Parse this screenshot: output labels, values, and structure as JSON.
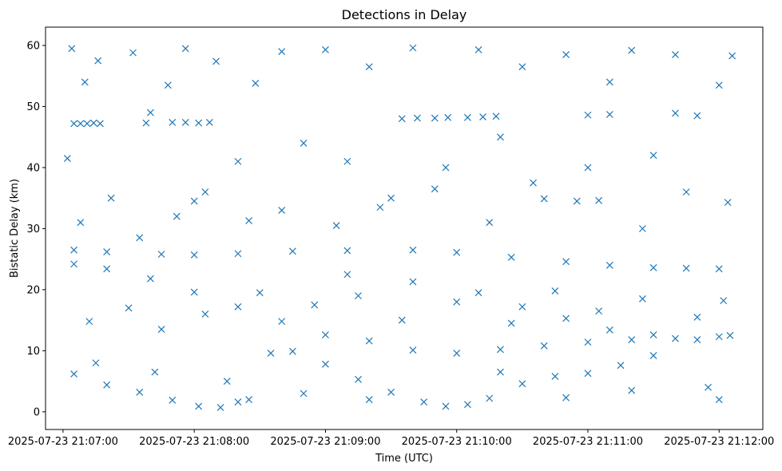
{
  "chart_data": {
    "type": "scatter",
    "title": "Detections in Delay",
    "xlabel": "Time (UTC)",
    "ylabel": "Bistatic Delay (km)",
    "marker": "x",
    "color": "#1f77b4",
    "xlim": [
      "2025-07-23 21:06:52",
      "2025-07-23 21:12:20"
    ],
    "ylim": [
      -2.9,
      63
    ],
    "x_ticks": [
      "2025-07-23 21:07:00",
      "2025-07-23 21:08:00",
      "2025-07-23 21:09:00",
      "2025-07-23 21:10:00",
      "2025-07-23 21:11:00",
      "2025-07-23 21:12:00"
    ],
    "y_ticks": [
      0,
      10,
      20,
      30,
      40,
      50,
      60
    ],
    "grid": false,
    "legend": "none",
    "series": [
      {
        "points": [
          [
            "2025-07-23 21:07:05",
            47.2
          ],
          [
            "2025-07-23 21:07:08",
            47.2
          ],
          [
            "2025-07-23 21:07:11",
            47.2
          ],
          [
            "2025-07-23 21:07:14",
            47.3
          ],
          [
            "2025-07-23 21:07:17",
            47.2
          ],
          [
            "2025-07-23 21:07:38",
            47.3
          ],
          [
            "2025-07-23 21:07:50",
            47.4
          ],
          [
            "2025-07-23 21:07:56",
            47.4
          ],
          [
            "2025-07-23 21:08:02",
            47.3
          ],
          [
            "2025-07-23 21:08:07",
            47.4
          ],
          [
            "2025-07-23 21:09:35",
            48.0
          ],
          [
            "2025-07-23 21:09:42",
            48.1
          ],
          [
            "2025-07-23 21:09:50",
            48.1
          ],
          [
            "2025-07-23 21:09:56",
            48.2
          ],
          [
            "2025-07-23 21:10:05",
            48.2
          ],
          [
            "2025-07-23 21:10:12",
            48.3
          ],
          [
            "2025-07-23 21:10:18",
            48.4
          ],
          [
            "2025-07-23 21:11:00",
            48.6
          ],
          [
            "2025-07-23 21:11:10",
            48.7
          ],
          [
            "2025-07-23 21:11:40",
            48.9
          ],
          [
            "2025-07-23 21:07:05",
            26.5
          ],
          [
            "2025-07-23 21:07:20",
            26.2
          ],
          [
            "2025-07-23 21:07:45",
            25.8
          ],
          [
            "2025-07-23 21:08:00",
            25.7
          ],
          [
            "2025-07-23 21:08:20",
            25.9
          ],
          [
            "2025-07-23 21:08:45",
            26.3
          ],
          [
            "2025-07-23 21:09:10",
            26.4
          ],
          [
            "2025-07-23 21:09:40",
            26.5
          ],
          [
            "2025-07-23 21:10:00",
            26.1
          ],
          [
            "2025-07-23 21:10:25",
            25.3
          ],
          [
            "2025-07-23 21:10:50",
            24.6
          ],
          [
            "2025-07-23 21:11:10",
            24.0
          ],
          [
            "2025-07-23 21:11:30",
            23.6
          ],
          [
            "2025-07-23 21:11:45",
            23.5
          ],
          [
            "2025-07-23 21:12:00",
            23.4
          ],
          [
            "2025-07-23 21:07:05",
            24.2
          ],
          [
            "2025-07-23 21:07:20",
            23.4
          ],
          [
            "2025-07-23 21:07:40",
            21.8
          ],
          [
            "2025-07-23 21:08:00",
            19.6
          ],
          [
            "2025-07-23 21:08:20",
            17.2
          ],
          [
            "2025-07-23 21:08:40",
            14.8
          ],
          [
            "2025-07-23 21:09:00",
            12.6
          ],
          [
            "2025-07-23 21:09:20",
            11.6
          ],
          [
            "2025-07-23 21:09:40",
            10.1
          ],
          [
            "2025-07-23 21:10:00",
            9.6
          ],
          [
            "2025-07-23 21:10:20",
            10.2
          ],
          [
            "2025-07-23 21:10:40",
            10.8
          ],
          [
            "2025-07-23 21:11:00",
            11.4
          ],
          [
            "2025-07-23 21:11:20",
            11.8
          ],
          [
            "2025-07-23 21:11:40",
            12.0
          ],
          [
            "2025-07-23 21:12:00",
            12.3
          ],
          [
            "2025-07-23 21:09:10",
            22.5
          ],
          [
            "2025-07-23 21:09:40",
            21.3
          ],
          [
            "2025-07-23 21:10:10",
            19.5
          ],
          [
            "2025-07-23 21:10:30",
            17.2
          ],
          [
            "2025-07-23 21:10:50",
            15.3
          ],
          [
            "2025-07-23 21:11:10",
            13.4
          ],
          [
            "2025-07-23 21:11:30",
            12.6
          ],
          [
            "2025-07-23 21:11:50",
            11.8
          ],
          [
            "2025-07-23 21:12:05",
            12.5
          ],
          [
            "2025-07-23 21:07:05",
            6.2
          ],
          [
            "2025-07-23 21:07:20",
            4.4
          ],
          [
            "2025-07-23 21:07:35",
            3.2
          ],
          [
            "2025-07-23 21:07:50",
            1.9
          ],
          [
            "2025-07-23 21:08:02",
            0.9
          ],
          [
            "2025-07-23 21:08:12",
            0.7
          ],
          [
            "2025-07-23 21:08:20",
            1.6
          ],
          [
            "2025-07-23 21:08:25",
            2.0
          ],
          [
            "2025-07-23 21:08:35",
            9.6
          ],
          [
            "2025-07-23 21:08:45",
            9.9
          ],
          [
            "2025-07-23 21:09:00",
            7.8
          ],
          [
            "2025-07-23 21:09:15",
            5.3
          ],
          [
            "2025-07-23 21:09:30",
            3.2
          ],
          [
            "2025-07-23 21:09:45",
            1.6
          ],
          [
            "2025-07-23 21:09:55",
            0.9
          ],
          [
            "2025-07-23 21:10:05",
            1.2
          ],
          [
            "2025-07-23 21:10:15",
            2.2
          ],
          [
            "2025-07-23 21:10:30",
            4.6
          ],
          [
            "2025-07-23 21:10:45",
            5.8
          ],
          [
            "2025-07-23 21:11:00",
            6.3
          ],
          [
            "2025-07-23 21:11:15",
            7.6
          ],
          [
            "2025-07-23 21:11:30",
            9.2
          ],
          [
            "2025-07-23 21:07:02",
            41.5
          ],
          [
            "2025-07-23 21:07:04",
            59.5
          ],
          [
            "2025-07-23 21:07:10",
            54.0
          ],
          [
            "2025-07-23 21:07:16",
            57.5
          ],
          [
            "2025-07-23 21:07:32",
            58.8
          ],
          [
            "2025-07-23 21:07:40",
            49.0
          ],
          [
            "2025-07-23 21:07:48",
            53.5
          ],
          [
            "2025-07-23 21:07:56",
            59.5
          ],
          [
            "2025-07-23 21:08:00",
            34.5
          ],
          [
            "2025-07-23 21:08:10",
            57.4
          ],
          [
            "2025-07-23 21:08:20",
            41.0
          ],
          [
            "2025-07-23 21:08:28",
            53.8
          ],
          [
            "2025-07-23 21:08:40",
            59.0
          ],
          [
            "2025-07-23 21:08:50",
            44.0
          ],
          [
            "2025-07-23 21:09:00",
            59.3
          ],
          [
            "2025-07-23 21:09:10",
            41.0
          ],
          [
            "2025-07-23 21:09:20",
            56.5
          ],
          [
            "2025-07-23 21:09:30",
            35.0
          ],
          [
            "2025-07-23 21:09:40",
            59.6
          ],
          [
            "2025-07-23 21:09:55",
            40.0
          ],
          [
            "2025-07-23 21:10:10",
            59.3
          ],
          [
            "2025-07-23 21:10:20",
            45.0
          ],
          [
            "2025-07-23 21:10:30",
            56.5
          ],
          [
            "2025-07-23 21:10:40",
            34.9
          ],
          [
            "2025-07-23 21:10:50",
            58.5
          ],
          [
            "2025-07-23 21:11:00",
            40.0
          ],
          [
            "2025-07-23 21:11:10",
            54.0
          ],
          [
            "2025-07-23 21:11:20",
            59.2
          ],
          [
            "2025-07-23 21:11:30",
            42.0
          ],
          [
            "2025-07-23 21:11:40",
            58.5
          ],
          [
            "2025-07-23 21:11:50",
            48.5
          ],
          [
            "2025-07-23 21:12:00",
            53.5
          ],
          [
            "2025-07-23 21:12:06",
            58.3
          ],
          [
            "2025-07-23 21:07:08",
            31.0
          ],
          [
            "2025-07-23 21:07:22",
            35.0
          ],
          [
            "2025-07-23 21:07:35",
            28.5
          ],
          [
            "2025-07-23 21:07:52",
            32.0
          ],
          [
            "2025-07-23 21:08:05",
            36.0
          ],
          [
            "2025-07-23 21:08:25",
            31.3
          ],
          [
            "2025-07-23 21:08:40",
            33.0
          ],
          [
            "2025-07-23 21:09:05",
            30.5
          ],
          [
            "2025-07-23 21:09:25",
            33.5
          ],
          [
            "2025-07-23 21:09:50",
            36.5
          ],
          [
            "2025-07-23 21:10:15",
            31.0
          ],
          [
            "2025-07-23 21:10:35",
            37.5
          ],
          [
            "2025-07-23 21:10:55",
            34.5
          ],
          [
            "2025-07-23 21:11:05",
            34.6
          ],
          [
            "2025-07-23 21:11:25",
            30.0
          ],
          [
            "2025-07-23 21:11:45",
            36.0
          ],
          [
            "2025-07-23 21:12:04",
            34.3
          ],
          [
            "2025-07-23 21:07:12",
            14.8
          ],
          [
            "2025-07-23 21:07:30",
            17.0
          ],
          [
            "2025-07-23 21:07:45",
            13.5
          ],
          [
            "2025-07-23 21:08:05",
            16.0
          ],
          [
            "2025-07-23 21:08:30",
            19.5
          ],
          [
            "2025-07-23 21:08:55",
            17.5
          ],
          [
            "2025-07-23 21:09:15",
            19.0
          ],
          [
            "2025-07-23 21:09:35",
            15.0
          ],
          [
            "2025-07-23 21:10:00",
            18.0
          ],
          [
            "2025-07-23 21:10:25",
            14.5
          ],
          [
            "2025-07-23 21:10:45",
            19.8
          ],
          [
            "2025-07-23 21:11:05",
            16.5
          ],
          [
            "2025-07-23 21:11:25",
            18.5
          ],
          [
            "2025-07-23 21:11:50",
            15.5
          ],
          [
            "2025-07-23 21:12:02",
            18.2
          ],
          [
            "2025-07-23 21:07:15",
            8.0
          ],
          [
            "2025-07-23 21:07:42",
            6.5
          ],
          [
            "2025-07-23 21:08:15",
            5.0
          ],
          [
            "2025-07-23 21:08:50",
            3.0
          ],
          [
            "2025-07-23 21:09:20",
            2.0
          ],
          [
            "2025-07-23 21:10:20",
            6.5
          ],
          [
            "2025-07-23 21:10:50",
            2.3
          ],
          [
            "2025-07-23 21:11:20",
            3.5
          ],
          [
            "2025-07-23 21:11:55",
            4.0
          ],
          [
            "2025-07-23 21:12:00",
            2.0
          ]
        ]
      }
    ]
  }
}
